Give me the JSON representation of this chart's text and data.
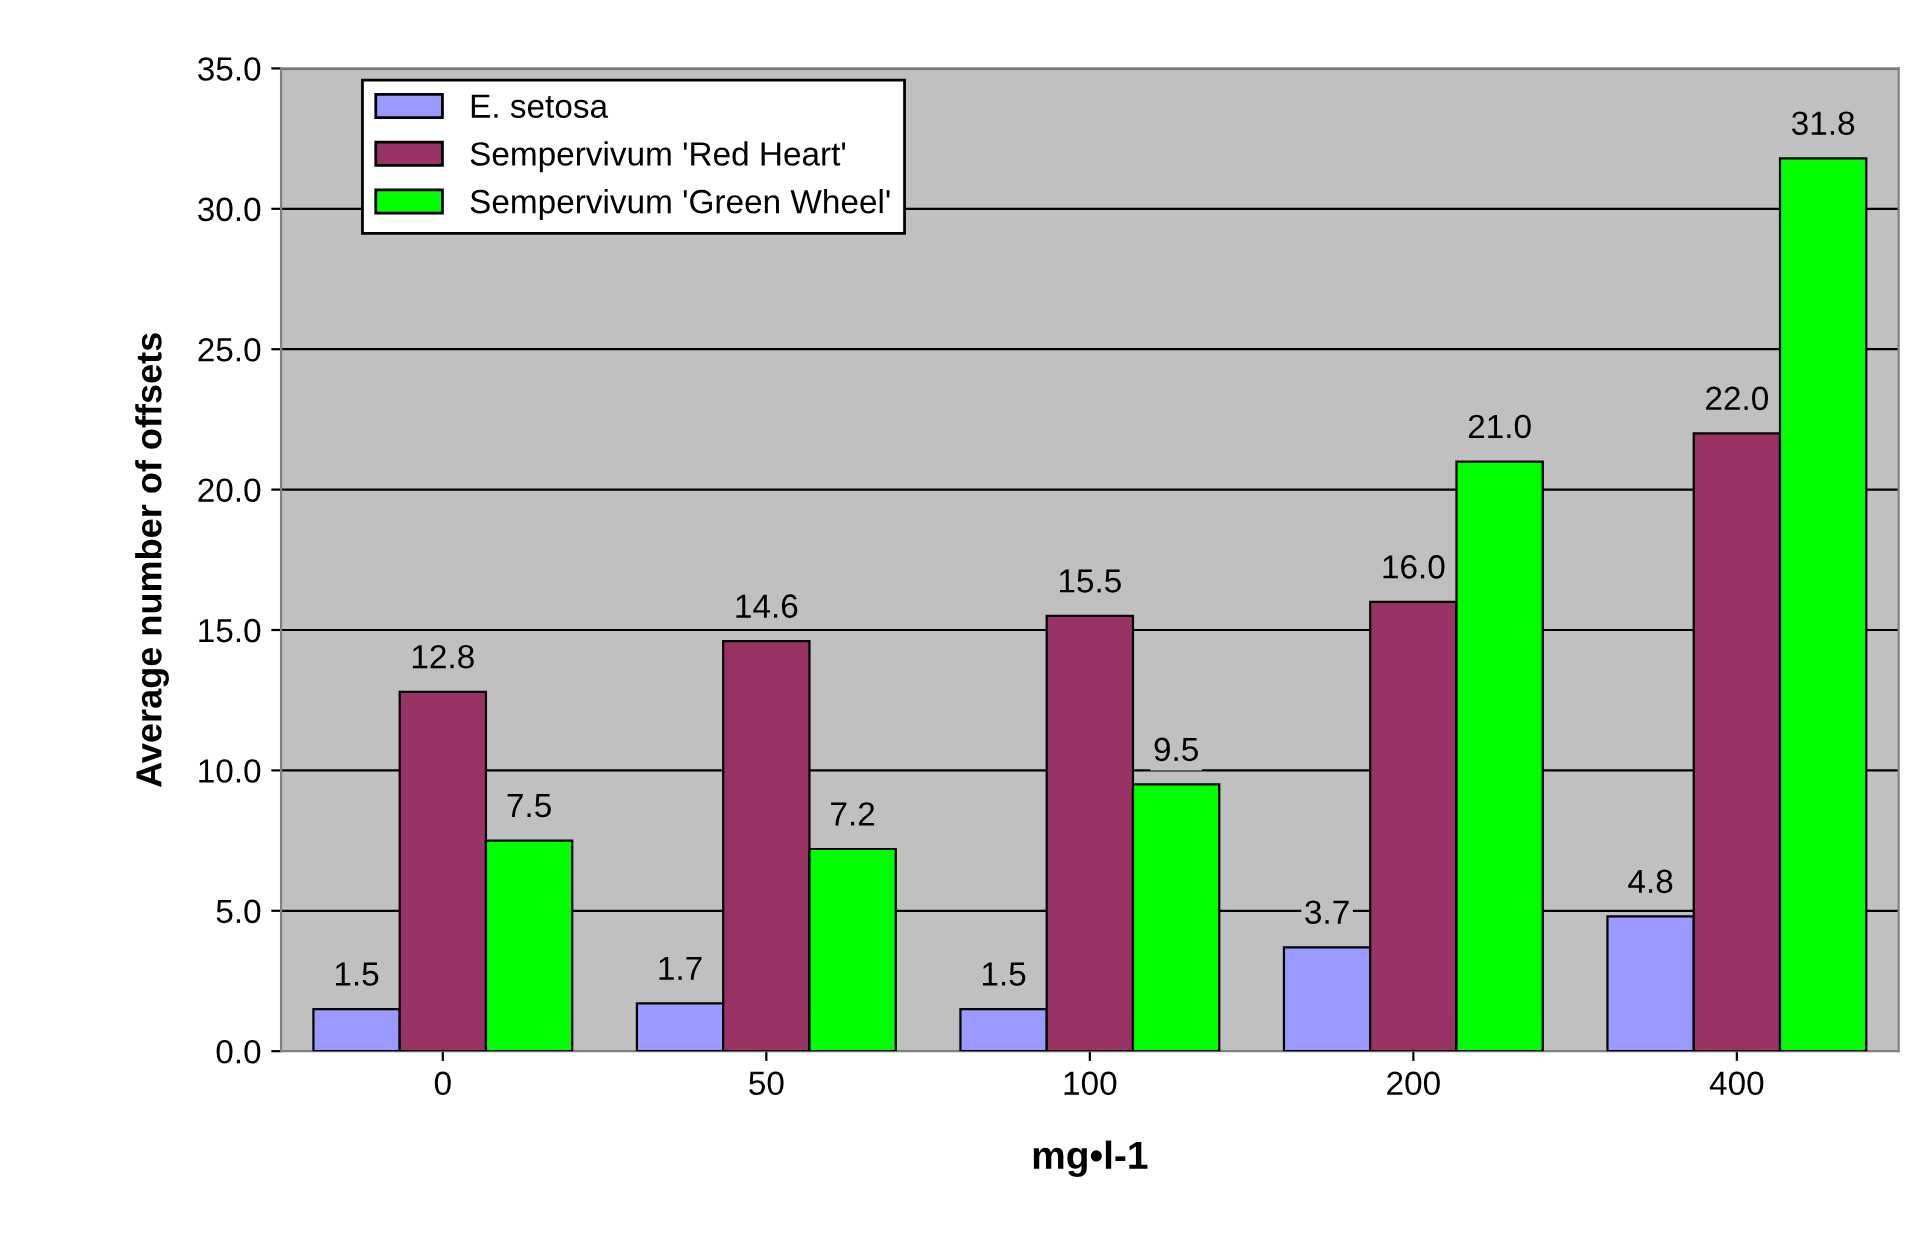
{
  "chart_data": {
    "type": "bar",
    "xlabel": "mg•l-1",
    "ylabel": "Average number of offsets",
    "categories": [
      "0",
      "50",
      "100",
      "200",
      "400"
    ],
    "series": [
      {
        "name": "E. setosa",
        "color": "#9999ff",
        "values": [
          1.5,
          1.7,
          1.5,
          3.7,
          4.8
        ],
        "value_labels": [
          "1.5",
          "1.7",
          "1.5",
          "3.7",
          "4.8"
        ]
      },
      {
        "name": "Sempervivum 'Red Heart'",
        "color": "#993366",
        "values": [
          12.8,
          14.6,
          15.5,
          16.0,
          22.0
        ],
        "value_labels": [
          "12.8",
          "14.6",
          "15.5",
          "16.0",
          "22.0"
        ]
      },
      {
        "name": "Sempervivum 'Green Wheel'",
        "color": "#00ff00",
        "values": [
          7.5,
          7.2,
          9.5,
          21.0,
          31.8
        ],
        "value_labels": [
          "7.5",
          "7.2",
          "9.5",
          "21.0",
          "31.8"
        ]
      }
    ],
    "ylim": [
      0,
      35
    ],
    "yticks": [
      {
        "value": 0,
        "label": "0.0"
      },
      {
        "value": 5,
        "label": "5.0"
      },
      {
        "value": 10,
        "label": "10.0"
      },
      {
        "value": 15,
        "label": "15.0"
      },
      {
        "value": 20,
        "label": "20.0"
      },
      {
        "value": 25,
        "label": "25.0"
      },
      {
        "value": 30,
        "label": "30.0"
      },
      {
        "value": 35,
        "label": "35.0"
      }
    ],
    "grid": "y",
    "legend": "top left"
  }
}
